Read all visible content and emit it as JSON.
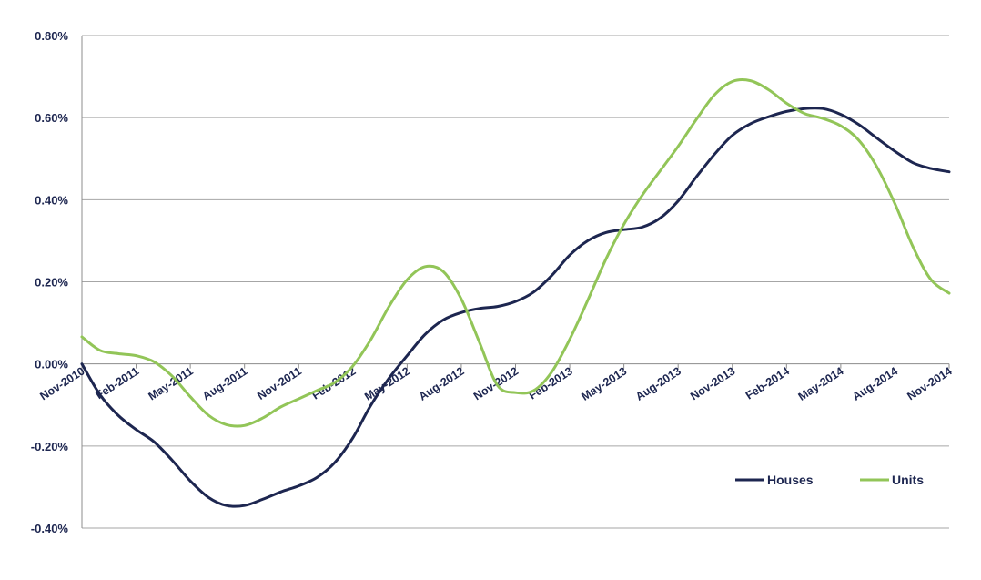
{
  "chart_data": {
    "type": "line",
    "title": "",
    "xlabel": "",
    "ylabel": "",
    "ylim": [
      -0.4,
      0.8
    ],
    "y_tick_labels": [
      "-0.40%",
      "-0.20%",
      "0.00%",
      "0.20%",
      "0.40%",
      "0.60%",
      "0.80%"
    ],
    "y_tick_values": [
      -0.4,
      -0.2,
      0.0,
      0.2,
      0.4,
      0.6,
      0.8
    ],
    "x_tick_labels": [
      "Nov-2010",
      "Feb-2011",
      "May-2011",
      "Aug-2011",
      "Nov-2011",
      "Feb-2012",
      "May-2012",
      "Aug-2012",
      "Nov-2012",
      "Feb-2013",
      "May-2013",
      "Aug-2013",
      "Nov-2013",
      "Feb-2014",
      "May-2014",
      "Aug-2014",
      "Nov-2014"
    ],
    "x_start": "Nov-2010",
    "x_end": "Nov-2014",
    "grid": "horizontal",
    "legend_position": "bottom-right",
    "series": [
      {
        "name": "Houses",
        "color": "#1d2650",
        "values": [
          0.0,
          -0.075,
          -0.125,
          -0.16,
          -0.19,
          -0.235,
          -0.285,
          -0.325,
          -0.345,
          -0.345,
          -0.33,
          -0.312,
          -0.297,
          -0.277,
          -0.24,
          -0.18,
          -0.1,
          -0.035,
          0.02,
          0.072,
          0.107,
          0.125,
          0.135,
          0.14,
          0.152,
          0.175,
          0.215,
          0.265,
          0.3,
          0.32,
          0.327,
          0.333,
          0.355,
          0.397,
          0.455,
          0.51,
          0.557,
          0.585,
          0.602,
          0.615,
          0.622,
          0.622,
          0.608,
          0.583,
          0.55,
          0.518,
          0.49,
          0.476,
          0.468
        ]
      },
      {
        "name": "Units",
        "color": "#92c558",
        "values": [
          0.066,
          0.033,
          0.025,
          0.02,
          0.005,
          -0.03,
          -0.08,
          -0.125,
          -0.148,
          -0.15,
          -0.132,
          -0.105,
          -0.085,
          -0.065,
          -0.045,
          -0.005,
          0.06,
          0.14,
          0.205,
          0.237,
          0.225,
          0.158,
          0.053,
          -0.052,
          -0.07,
          -0.065,
          -0.02,
          0.06,
          0.155,
          0.255,
          0.34,
          0.41,
          0.47,
          0.53,
          0.595,
          0.655,
          0.688,
          0.69,
          0.668,
          0.635,
          0.61,
          0.598,
          0.58,
          0.545,
          0.48,
          0.39,
          0.285,
          0.205,
          0.172
        ]
      }
    ]
  }
}
